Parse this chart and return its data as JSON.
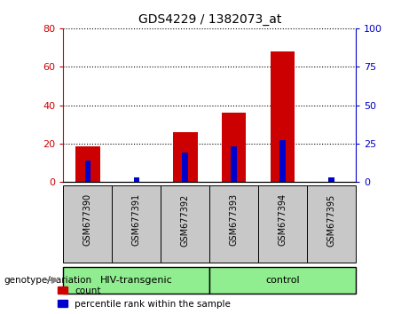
{
  "title": "GDS4229 / 1382073_at",
  "samples": [
    "GSM677390",
    "GSM677391",
    "GSM677392",
    "GSM677393",
    "GSM677394",
    "GSM677395"
  ],
  "count_values": [
    18.5,
    0,
    26,
    36,
    68,
    0
  ],
  "percentile_values": [
    14,
    3,
    19,
    23,
    27,
    3
  ],
  "groups": [
    {
      "label": "HIV-transgenic",
      "start": 0,
      "end": 3,
      "color": "#90EE90"
    },
    {
      "label": "control",
      "start": 3,
      "end": 6,
      "color": "#90EE90"
    }
  ],
  "ylim_left": [
    0,
    80
  ],
  "ylim_right": [
    0,
    100
  ],
  "yticks_left": [
    0,
    20,
    40,
    60,
    80
  ],
  "yticks_right": [
    0,
    25,
    50,
    75,
    100
  ],
  "left_tick_color": "#CC0000",
  "right_tick_color": "#0000CC",
  "bar_color_red": "#CC0000",
  "bar_color_blue": "#0000CC",
  "grid_color": "black",
  "label_bg_color": "#C8C8C8",
  "plot_bg": "white",
  "legend_labels": [
    "count",
    "percentile rank within the sample"
  ],
  "red_bar_width": 0.5,
  "blue_bar_width": 0.12,
  "group_label": "genotype/variation"
}
